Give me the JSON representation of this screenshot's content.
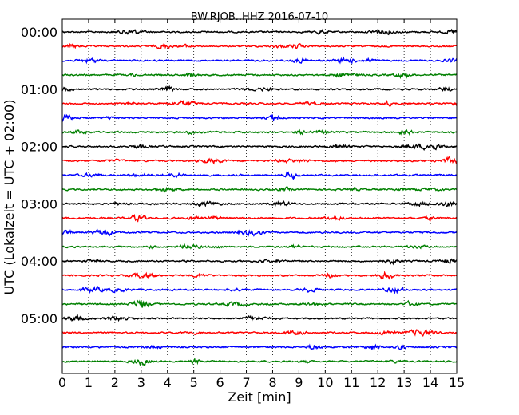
{
  "chart_data": {
    "type": "line",
    "title": "BW.RJOB..HHZ 2016-07-10",
    "xlabel": "Zeit  [min]",
    "ylabel": "UTC (Lokalzeit = UTC + 02:00)",
    "xlim": [
      0,
      15
    ],
    "x_ticks": [
      0,
      1,
      2,
      3,
      4,
      5,
      6,
      7,
      8,
      9,
      10,
      11,
      12,
      13,
      14,
      15
    ],
    "x_tick_labels": [
      "0",
      "1",
      "2",
      "3",
      "4",
      "5",
      "6",
      "7",
      "8",
      "9",
      "10",
      "11",
      "12",
      "13",
      "14",
      "15"
    ],
    "y_tick_labels": [
      "00:00",
      "01:00",
      "02:00",
      "03:00",
      "04:00",
      "05:00"
    ],
    "y_tick_rows": [
      0,
      4,
      8,
      12,
      16,
      20
    ],
    "grid": true,
    "trace_minutes": 15,
    "trace_colors": [
      "#000000",
      "#ff0000",
      "#0000ff",
      "#008000"
    ],
    "traces": [
      {
        "start": "00:00"
      },
      {
        "start": "00:15"
      },
      {
        "start": "00:30"
      },
      {
        "start": "00:45"
      },
      {
        "start": "01:00"
      },
      {
        "start": "01:15"
      },
      {
        "start": "01:30"
      },
      {
        "start": "01:45"
      },
      {
        "start": "02:00"
      },
      {
        "start": "02:15"
      },
      {
        "start": "02:30"
      },
      {
        "start": "02:45"
      },
      {
        "start": "03:00"
      },
      {
        "start": "03:15"
      },
      {
        "start": "03:30"
      },
      {
        "start": "03:45"
      },
      {
        "start": "04:00"
      },
      {
        "start": "04:15"
      },
      {
        "start": "04:30"
      },
      {
        "start": "04:45"
      },
      {
        "start": "05:00"
      },
      {
        "start": "05:15"
      },
      {
        "start": "05:30"
      },
      {
        "start": "05:45"
      }
    ]
  }
}
